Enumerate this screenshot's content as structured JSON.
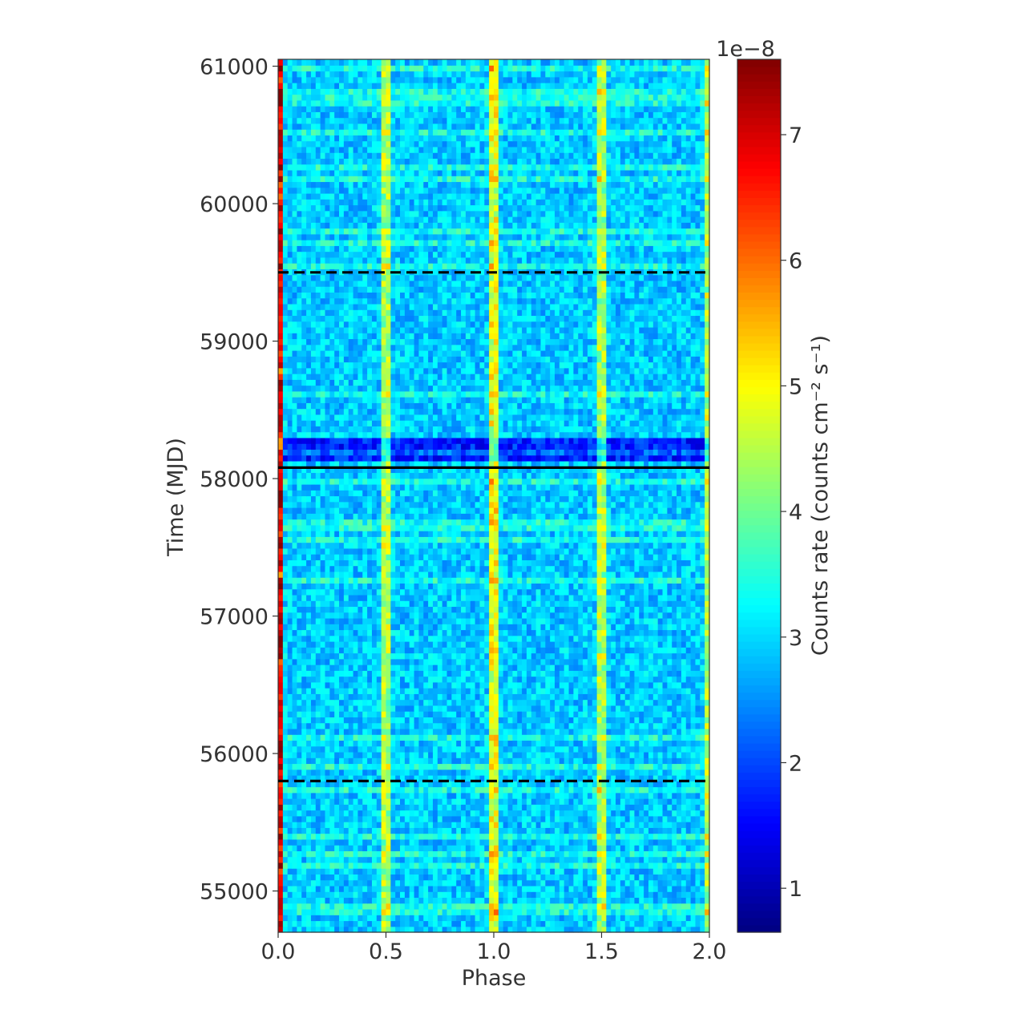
{
  "chart_data": {
    "type": "heatmap",
    "title": "",
    "xlabel": "Phase",
    "ylabel": "Time (MJD)",
    "xlim": [
      0.0,
      2.0
    ],
    "ylim": [
      54700,
      61050
    ],
    "xticks": [
      0.0,
      0.5,
      1.0,
      1.5,
      2.0
    ],
    "xtick_labels": [
      "0.0",
      "0.5",
      "1.0",
      "1.5",
      "2.0"
    ],
    "yticks": [
      55000,
      56000,
      57000,
      58000,
      59000,
      60000,
      61000
    ],
    "ytick_labels": [
      "55000",
      "56000",
      "57000",
      "58000",
      "59000",
      "60000",
      "61000"
    ],
    "colormap": "jet",
    "colorbar": {
      "label": "Counts rate (counts cm⁻² s⁻¹)",
      "multiplier": "1e−8",
      "range": [
        0.65,
        7.6
      ],
      "ticks": [
        1,
        2,
        3,
        4,
        5,
        6,
        7
      ],
      "tick_labels": [
        "1",
        "2",
        "3",
        "4",
        "5",
        "6",
        "7"
      ]
    },
    "peaks_phase": [
      0.0,
      0.5,
      1.0,
      1.5,
      2.0
    ],
    "background_level": 2.9,
    "peak_level": 5.2,
    "dip_epoch_mjd": 58200,
    "horizontal_lines": [
      {
        "y": 59500,
        "style": "dashed",
        "color": "#000000"
      },
      {
        "y": 58080,
        "style": "solid",
        "color": "#000000"
      },
      {
        "y": 55800,
        "style": "dashed",
        "color": "#000000"
      }
    ]
  }
}
